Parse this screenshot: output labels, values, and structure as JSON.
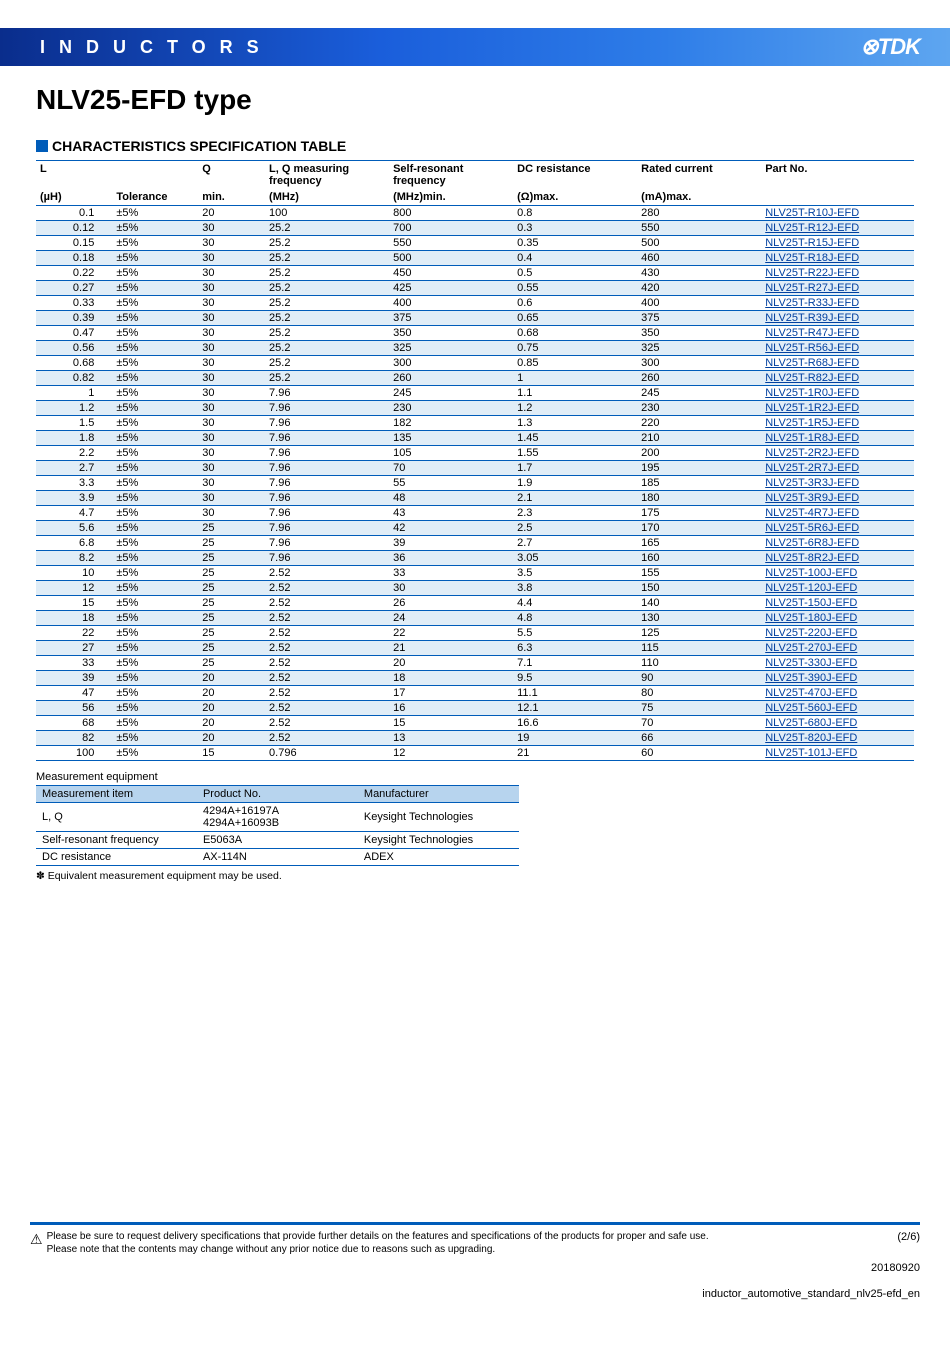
{
  "banner": {
    "category": "INDUCTORS",
    "brand": "⊗TDK"
  },
  "page_title": "NLV25-EFD type",
  "section_title": "CHARACTERISTICS SPECIFICATION TABLE",
  "colors": {
    "brand_blue": "#005cb9",
    "alt_row": "#e0edf7",
    "link": "#0040a0"
  },
  "spec_table": {
    "headers1": [
      "L",
      "",
      "Q",
      "L, Q measuring frequency",
      "Self-resonant frequency",
      "DC resistance",
      "Rated current",
      "Part No."
    ],
    "headers2": [
      "(µH)",
      "Tolerance",
      "min.",
      "(MHz)",
      "(MHz)min.",
      "(Ω)max.",
      "(mA)max.",
      ""
    ],
    "rows": [
      [
        "0.1",
        "±5%",
        "20",
        "100",
        "800",
        "0.8",
        "280",
        "NLV25T-R10J-EFD"
      ],
      [
        "0.12",
        "±5%",
        "30",
        "25.2",
        "700",
        "0.3",
        "550",
        "NLV25T-R12J-EFD"
      ],
      [
        "0.15",
        "±5%",
        "30",
        "25.2",
        "550",
        "0.35",
        "500",
        "NLV25T-R15J-EFD"
      ],
      [
        "0.18",
        "±5%",
        "30",
        "25.2",
        "500",
        "0.4",
        "460",
        "NLV25T-R18J-EFD"
      ],
      [
        "0.22",
        "±5%",
        "30",
        "25.2",
        "450",
        "0.5",
        "430",
        "NLV25T-R22J-EFD"
      ],
      [
        "0.27",
        "±5%",
        "30",
        "25.2",
        "425",
        "0.55",
        "420",
        "NLV25T-R27J-EFD"
      ],
      [
        "0.33",
        "±5%",
        "30",
        "25.2",
        "400",
        "0.6",
        "400",
        "NLV25T-R33J-EFD"
      ],
      [
        "0.39",
        "±5%",
        "30",
        "25.2",
        "375",
        "0.65",
        "375",
        "NLV25T-R39J-EFD"
      ],
      [
        "0.47",
        "±5%",
        "30",
        "25.2",
        "350",
        "0.68",
        "350",
        "NLV25T-R47J-EFD"
      ],
      [
        "0.56",
        "±5%",
        "30",
        "25.2",
        "325",
        "0.75",
        "325",
        "NLV25T-R56J-EFD"
      ],
      [
        "0.68",
        "±5%",
        "30",
        "25.2",
        "300",
        "0.85",
        "300",
        "NLV25T-R68J-EFD"
      ],
      [
        "0.82",
        "±5%",
        "30",
        "25.2",
        "260",
        "1",
        "260",
        "NLV25T-R82J-EFD"
      ],
      [
        "1",
        "±5%",
        "30",
        "7.96",
        "245",
        "1.1",
        "245",
        "NLV25T-1R0J-EFD"
      ],
      [
        "1.2",
        "±5%",
        "30",
        "7.96",
        "230",
        "1.2",
        "230",
        "NLV25T-1R2J-EFD"
      ],
      [
        "1.5",
        "±5%",
        "30",
        "7.96",
        "182",
        "1.3",
        "220",
        "NLV25T-1R5J-EFD"
      ],
      [
        "1.8",
        "±5%",
        "30",
        "7.96",
        "135",
        "1.45",
        "210",
        "NLV25T-1R8J-EFD"
      ],
      [
        "2.2",
        "±5%",
        "30",
        "7.96",
        "105",
        "1.55",
        "200",
        "NLV25T-2R2J-EFD"
      ],
      [
        "2.7",
        "±5%",
        "30",
        "7.96",
        "70",
        "1.7",
        "195",
        "NLV25T-2R7J-EFD"
      ],
      [
        "3.3",
        "±5%",
        "30",
        "7.96",
        "55",
        "1.9",
        "185",
        "NLV25T-3R3J-EFD"
      ],
      [
        "3.9",
        "±5%",
        "30",
        "7.96",
        "48",
        "2.1",
        "180",
        "NLV25T-3R9J-EFD"
      ],
      [
        "4.7",
        "±5%",
        "30",
        "7.96",
        "43",
        "2.3",
        "175",
        "NLV25T-4R7J-EFD"
      ],
      [
        "5.6",
        "±5%",
        "25",
        "7.96",
        "42",
        "2.5",
        "170",
        "NLV25T-5R6J-EFD"
      ],
      [
        "6.8",
        "±5%",
        "25",
        "7.96",
        "39",
        "2.7",
        "165",
        "NLV25T-6R8J-EFD"
      ],
      [
        "8.2",
        "±5%",
        "25",
        "7.96",
        "36",
        "3.05",
        "160",
        "NLV25T-8R2J-EFD"
      ],
      [
        "10",
        "±5%",
        "25",
        "2.52",
        "33",
        "3.5",
        "155",
        "NLV25T-100J-EFD"
      ],
      [
        "12",
        "±5%",
        "25",
        "2.52",
        "30",
        "3.8",
        "150",
        "NLV25T-120J-EFD"
      ],
      [
        "15",
        "±5%",
        "25",
        "2.52",
        "26",
        "4.4",
        "140",
        "NLV25T-150J-EFD"
      ],
      [
        "18",
        "±5%",
        "25",
        "2.52",
        "24",
        "4.8",
        "130",
        "NLV25T-180J-EFD"
      ],
      [
        "22",
        "±5%",
        "25",
        "2.52",
        "22",
        "5.5",
        "125",
        "NLV25T-220J-EFD"
      ],
      [
        "27",
        "±5%",
        "25",
        "2.52",
        "21",
        "6.3",
        "115",
        "NLV25T-270J-EFD"
      ],
      [
        "33",
        "±5%",
        "25",
        "2.52",
        "20",
        "7.1",
        "110",
        "NLV25T-330J-EFD"
      ],
      [
        "39",
        "±5%",
        "20",
        "2.52",
        "18",
        "9.5",
        "90",
        "NLV25T-390J-EFD"
      ],
      [
        "47",
        "±5%",
        "20",
        "2.52",
        "17",
        "11.1",
        "80",
        "NLV25T-470J-EFD"
      ],
      [
        "56",
        "±5%",
        "20",
        "2.52",
        "16",
        "12.1",
        "75",
        "NLV25T-560J-EFD"
      ],
      [
        "68",
        "±5%",
        "20",
        "2.52",
        "15",
        "16.6",
        "70",
        "NLV25T-680J-EFD"
      ],
      [
        "82",
        "±5%",
        "20",
        "2.52",
        "13",
        "19",
        "66",
        "NLV25T-820J-EFD"
      ],
      [
        "100",
        "±5%",
        "15",
        "0.796",
        "12",
        "21",
        "60",
        "NLV25T-101J-EFD"
      ]
    ]
  },
  "meas_caption": "Measurement equipment",
  "meas_table": {
    "headers": [
      "Measurement item",
      "Product No.",
      "Manufacturer"
    ],
    "rows": [
      [
        "L, Q",
        "4294A+16197A\n4294A+16093B",
        "Keysight Technologies"
      ],
      [
        "Self-resonant frequency",
        "E5063A",
        "Keysight Technologies"
      ],
      [
        "DC resistance",
        "AX-114N",
        "ADEX"
      ]
    ]
  },
  "footnote": "✽ Equivalent measurement equipment may be used.",
  "footer": {
    "warn": "⚠",
    "text1": "Please be sure to request delivery specifications that provide further details on the features and specifications of the products for proper and safe use.",
    "text2": "Please note that the contents may change without any prior notice due to reasons such as upgrading.",
    "pagenum": "(2/6)",
    "date": "20180920",
    "filename": "inductor_automotive_standard_nlv25-efd_en"
  }
}
